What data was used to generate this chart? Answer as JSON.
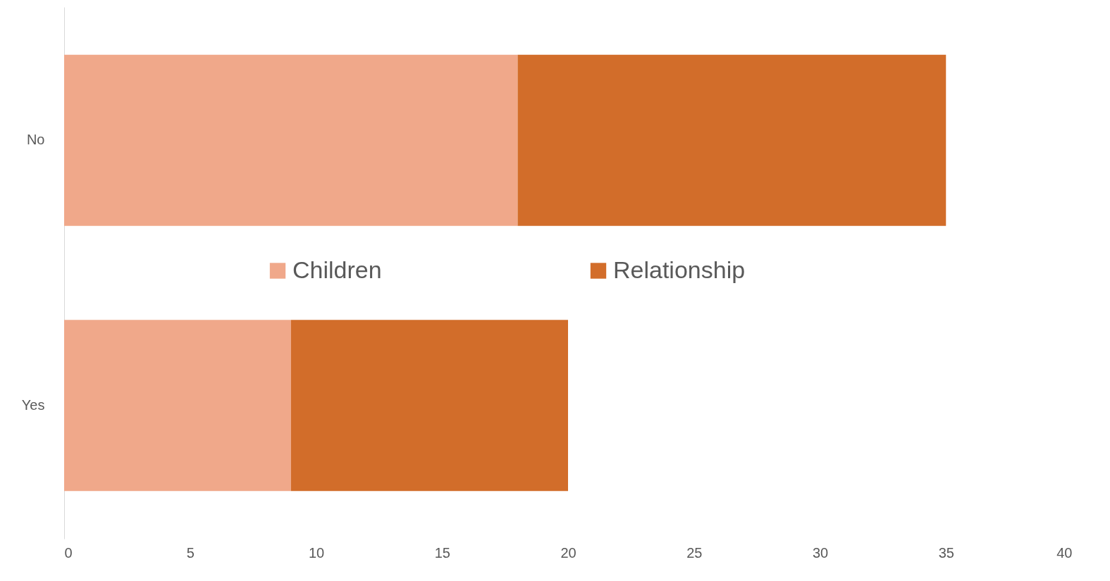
{
  "chart_data": {
    "type": "bar",
    "orientation": "horizontal",
    "stacked": true,
    "categories": [
      "No",
      "Yes"
    ],
    "series": [
      {
        "name": "Children",
        "color": "#f0a88a",
        "values": [
          18,
          9
        ]
      },
      {
        "name": "Relationship",
        "color": "#d26d2a",
        "values": [
          17,
          11
        ]
      }
    ],
    "xlim": [
      0,
      40
    ],
    "xticks": [
      0,
      5,
      10,
      15,
      20,
      25,
      30,
      35,
      40
    ],
    "grid": false,
    "legend": "center"
  }
}
